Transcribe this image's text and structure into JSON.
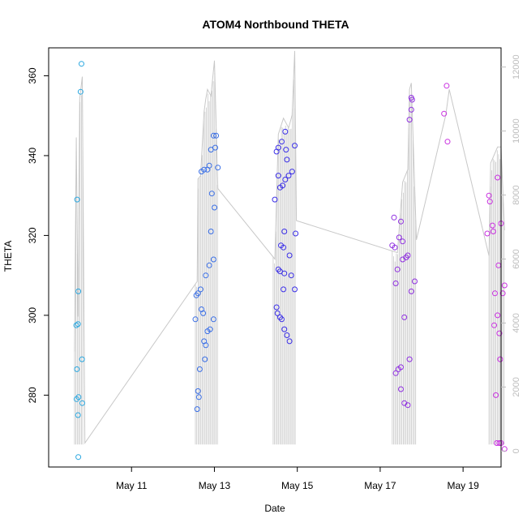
{
  "chart_data": {
    "type": "scatter",
    "title": "ATOM4 Northbound THETA",
    "xlabel": "Date",
    "ylabel": "THETA",
    "x_axis": {
      "kind": "date",
      "range": [
        "2024-05-09T00:00",
        "2024-05-19T22:00"
      ],
      "ticks": [
        {
          "label": "May 11",
          "date": "2024-05-11T00:00"
        },
        {
          "label": "May 13",
          "date": "2024-05-13T00:00"
        },
        {
          "label": "May 15",
          "date": "2024-05-15T00:00"
        },
        {
          "label": "May 17",
          "date": "2024-05-17T00:00"
        },
        {
          "label": "May 19",
          "date": "2024-05-19T00:00"
        }
      ]
    },
    "y_left": {
      "range": [
        262,
        367
      ],
      "ticks": [
        280,
        300,
        320,
        340,
        360
      ],
      "tick_labels": [
        "280",
        "300",
        "320",
        "340",
        "360"
      ]
    },
    "y_right": {
      "range": [
        -500,
        12600
      ],
      "ticks": [
        0,
        2000,
        4000,
        6000,
        8000,
        10000,
        12000
      ],
      "tick_labels": [
        "0",
        "2000",
        "4000",
        "6000",
        "8000",
        "10000",
        "12000"
      ],
      "color": "#bdbdbd"
    },
    "grid": false,
    "series": [
      {
        "color": "#2aa7e0",
        "points": [
          [
            "2024-05-09T19:00",
            363
          ],
          [
            "2024-05-09T18:30",
            356
          ],
          [
            "2024-05-09T16:30",
            329
          ],
          [
            "2024-05-09T17:10",
            306
          ],
          [
            "2024-05-09T16:00",
            297.5
          ],
          [
            "2024-05-09T17:00",
            297.8
          ],
          [
            "2024-05-09T16:20",
            286.5
          ],
          [
            "2024-05-09T19:20",
            289
          ],
          [
            "2024-05-09T16:10",
            279
          ],
          [
            "2024-05-09T17:20",
            279.5
          ],
          [
            "2024-05-09T19:30",
            278
          ],
          [
            "2024-05-09T17:00",
            275
          ],
          [
            "2024-05-09T17:10",
            264.5
          ]
        ]
      },
      {
        "color": "#3a6fe6",
        "points": [
          [
            "2024-05-12T13:00",
            299
          ],
          [
            "2024-05-12T13:30",
            305
          ],
          [
            "2024-05-12T14:30",
            305.5
          ],
          [
            "2024-05-12T16:00",
            306.5
          ],
          [
            "2024-05-12T16:30",
            301.5
          ],
          [
            "2024-05-12T17:30",
            300.5
          ],
          [
            "2024-05-12T18:00",
            293.5
          ],
          [
            "2024-05-12T19:00",
            292.5
          ],
          [
            "2024-05-12T18:30",
            289
          ],
          [
            "2024-05-12T15:30",
            286.5
          ],
          [
            "2024-05-12T14:30",
            281
          ],
          [
            "2024-05-12T15:00",
            279.5
          ],
          [
            "2024-05-12T14:00",
            276.5
          ],
          [
            "2024-05-12T16:30",
            336
          ],
          [
            "2024-05-12T18:00",
            336.5
          ],
          [
            "2024-05-12T20:00",
            336.5
          ],
          [
            "2024-05-12T21:00",
            337.5
          ],
          [
            "2024-05-12T22:00",
            341.5
          ],
          [
            "2024-05-12T23:30",
            345
          ],
          [
            "2024-05-13T01:00",
            345
          ],
          [
            "2024-05-13T00:30",
            342
          ],
          [
            "2024-05-13T02:00",
            337
          ],
          [
            "2024-05-12T22:30",
            330.5
          ],
          [
            "2024-05-13T00:00",
            327
          ],
          [
            "2024-05-12T22:00",
            321
          ],
          [
            "2024-05-12T23:30",
            314
          ],
          [
            "2024-05-12T21:00",
            312.5
          ],
          [
            "2024-05-12T19:00",
            310
          ],
          [
            "2024-05-12T20:00",
            296
          ],
          [
            "2024-05-12T21:30",
            296.5
          ],
          [
            "2024-05-12T23:30",
            299
          ]
        ]
      },
      {
        "color": "#3b2fe8",
        "points": [
          [
            "2024-05-14T11:00",
            329
          ],
          [
            "2024-05-14T12:00",
            341
          ],
          [
            "2024-05-14T13:00",
            342
          ],
          [
            "2024-05-14T15:00",
            343.5
          ],
          [
            "2024-05-14T17:00",
            346
          ],
          [
            "2024-05-14T17:30",
            341.5
          ],
          [
            "2024-05-14T18:00",
            339
          ],
          [
            "2024-05-14T19:00",
            335
          ],
          [
            "2024-05-14T21:00",
            336
          ],
          [
            "2024-05-14T22:30",
            342.5
          ],
          [
            "2024-05-14T13:00",
            335
          ],
          [
            "2024-05-14T14:00",
            332
          ],
          [
            "2024-05-14T15:30",
            332.5
          ],
          [
            "2024-05-14T17:00",
            334
          ],
          [
            "2024-05-14T16:30",
            321
          ],
          [
            "2024-05-14T14:30",
            317.5
          ],
          [
            "2024-05-14T16:00",
            317
          ],
          [
            "2024-05-14T19:30",
            315
          ],
          [
            "2024-05-14T13:00",
            311.5
          ],
          [
            "2024-05-14T14:00",
            311
          ],
          [
            "2024-05-14T16:30",
            310.5
          ],
          [
            "2024-05-14T20:30",
            310
          ],
          [
            "2024-05-14T16:00",
            306.5
          ],
          [
            "2024-05-14T22:30",
            306.5
          ],
          [
            "2024-05-14T23:00",
            320.5
          ],
          [
            "2024-05-14T12:00",
            302
          ],
          [
            "2024-05-14T12:30",
            300.5
          ],
          [
            "2024-05-14T14:00",
            299.5
          ],
          [
            "2024-05-14T15:00",
            299
          ],
          [
            "2024-05-14T16:30",
            296.5
          ],
          [
            "2024-05-14T18:00",
            295
          ],
          [
            "2024-05-14T19:30",
            293.5
          ]
        ]
      },
      {
        "color": "#8f2fe0",
        "points": [
          [
            "2024-05-17T08:00",
            324.5
          ],
          [
            "2024-05-17T12:00",
            323.5
          ],
          [
            "2024-05-17T11:00",
            319.5
          ],
          [
            "2024-05-17T13:00",
            318.5
          ],
          [
            "2024-05-17T08:30",
            317
          ],
          [
            "2024-05-17T07:00",
            317.5
          ],
          [
            "2024-05-17T16:00",
            315
          ],
          [
            "2024-05-17T13:00",
            314
          ],
          [
            "2024-05-17T15:00",
            314.5
          ],
          [
            "2024-05-17T10:00",
            311.5
          ],
          [
            "2024-05-17T09:00",
            308
          ],
          [
            "2024-05-17T20:00",
            308.5
          ],
          [
            "2024-05-17T18:00",
            306
          ],
          [
            "2024-05-17T14:00",
            299.5
          ],
          [
            "2024-05-17T17:00",
            289
          ],
          [
            "2024-05-17T12:00",
            287
          ],
          [
            "2024-05-17T10:30",
            286.5
          ],
          [
            "2024-05-17T09:00",
            285.5
          ],
          [
            "2024-05-17T12:00",
            281.5
          ],
          [
            "2024-05-17T14:00",
            278
          ],
          [
            "2024-05-17T16:00",
            277.5
          ],
          [
            "2024-05-17T18:00",
            354.5
          ],
          [
            "2024-05-17T18:30",
            354
          ],
          [
            "2024-05-17T18:00",
            351.5
          ],
          [
            "2024-05-17T17:00",
            349
          ]
        ]
      },
      {
        "color": "#c930e0",
        "points": [
          [
            "2024-05-18T14:30",
            357.5
          ],
          [
            "2024-05-18T13:00",
            350.5
          ],
          [
            "2024-05-18T15:00",
            343.5
          ],
          [
            "2024-05-19T15:00",
            330
          ],
          [
            "2024-05-19T15:30",
            328.5
          ],
          [
            "2024-05-19T20:00",
            334.5
          ],
          [
            "2024-05-19T17:00",
            322.5
          ],
          [
            "2024-05-19T17:30",
            321
          ],
          [
            "2024-05-19T22:00",
            323
          ],
          [
            "2024-05-19T14:00",
            320.5
          ],
          [
            "2024-05-19T20:30",
            312.5
          ],
          [
            "2024-05-20T00:00",
            307.5
          ],
          [
            "2024-05-19T18:30",
            305.5
          ],
          [
            "2024-05-19T23:00",
            305.5
          ],
          [
            "2024-05-19T20:00",
            300
          ],
          [
            "2024-05-19T18:00",
            297.5
          ],
          [
            "2024-05-19T21:00",
            295.5
          ],
          [
            "2024-05-19T21:30",
            289
          ],
          [
            "2024-05-19T19:00",
            280
          ],
          [
            "2024-05-19T19:30",
            268
          ],
          [
            "2024-05-19T21:00",
            268
          ],
          [
            "2024-05-19T22:00",
            268
          ],
          [
            "2024-05-20T00:00",
            266.5
          ]
        ]
      }
    ],
    "overlay": {
      "axis": "right",
      "color": "#c8c8c8",
      "envelope": [
        [
          "2024-05-09T15:00",
          3100
        ],
        [
          "2024-05-09T16:00",
          9800
        ],
        [
          "2024-05-09T17:00",
          4200
        ],
        [
          "2024-05-09T18:00",
          11000
        ],
        [
          "2024-05-09T19:30",
          11700
        ],
        [
          "2024-05-09T21:00",
          250
        ],
        [
          "2024-05-12T14:00",
          5300
        ],
        [
          "2024-05-12T14:30",
          8500
        ],
        [
          "2024-05-12T16:00",
          8600
        ],
        [
          "2024-05-12T18:00",
          10600
        ],
        [
          "2024-05-12T19:00",
          11000
        ],
        [
          "2024-05-12T20:00",
          11300
        ],
        [
          "2024-05-12T22:00",
          11100
        ],
        [
          "2024-05-13T00:00",
          12200
        ],
        [
          "2024-05-13T02:00",
          8200
        ],
        [
          "2024-05-14T11:00",
          6000
        ],
        [
          "2024-05-14T13:00",
          9900
        ],
        [
          "2024-05-14T16:00",
          10400
        ],
        [
          "2024-05-14T19:00",
          10100
        ],
        [
          "2024-05-14T21:00",
          10500
        ],
        [
          "2024-05-14T22:30",
          12500
        ],
        [
          "2024-05-14T23:30",
          7200
        ],
        [
          "2024-05-17T10:00",
          6200
        ],
        [
          "2024-05-17T13:00",
          8400
        ],
        [
          "2024-05-17T16:00",
          8800
        ],
        [
          "2024-05-17T17:00",
          11300
        ],
        [
          "2024-05-17T18:00",
          11500
        ],
        [
          "2024-05-17T21:00",
          6600
        ],
        [
          "2024-05-18T14:00",
          10500
        ],
        [
          "2024-05-18T16:00",
          11300
        ],
        [
          "2024-05-19T15:00",
          6100
        ],
        [
          "2024-05-19T16:00",
          9000
        ],
        [
          "2024-05-19T20:00",
          9500
        ],
        [
          "2024-05-19T22:00",
          9500
        ],
        [
          "2024-05-20T00:00",
          6900
        ]
      ],
      "bursts": [
        [
          "2024-05-09T15:00",
          "2024-05-09T20:00"
        ],
        [
          "2024-05-12T13:00",
          "2024-05-13T02:30"
        ],
        [
          "2024-05-14T10:00",
          "2024-05-14T23:30"
        ],
        [
          "2024-05-17T07:00",
          "2024-05-17T21:00"
        ],
        [
          "2024-05-19T15:00",
          "2024-05-20T00:00"
        ]
      ]
    }
  }
}
